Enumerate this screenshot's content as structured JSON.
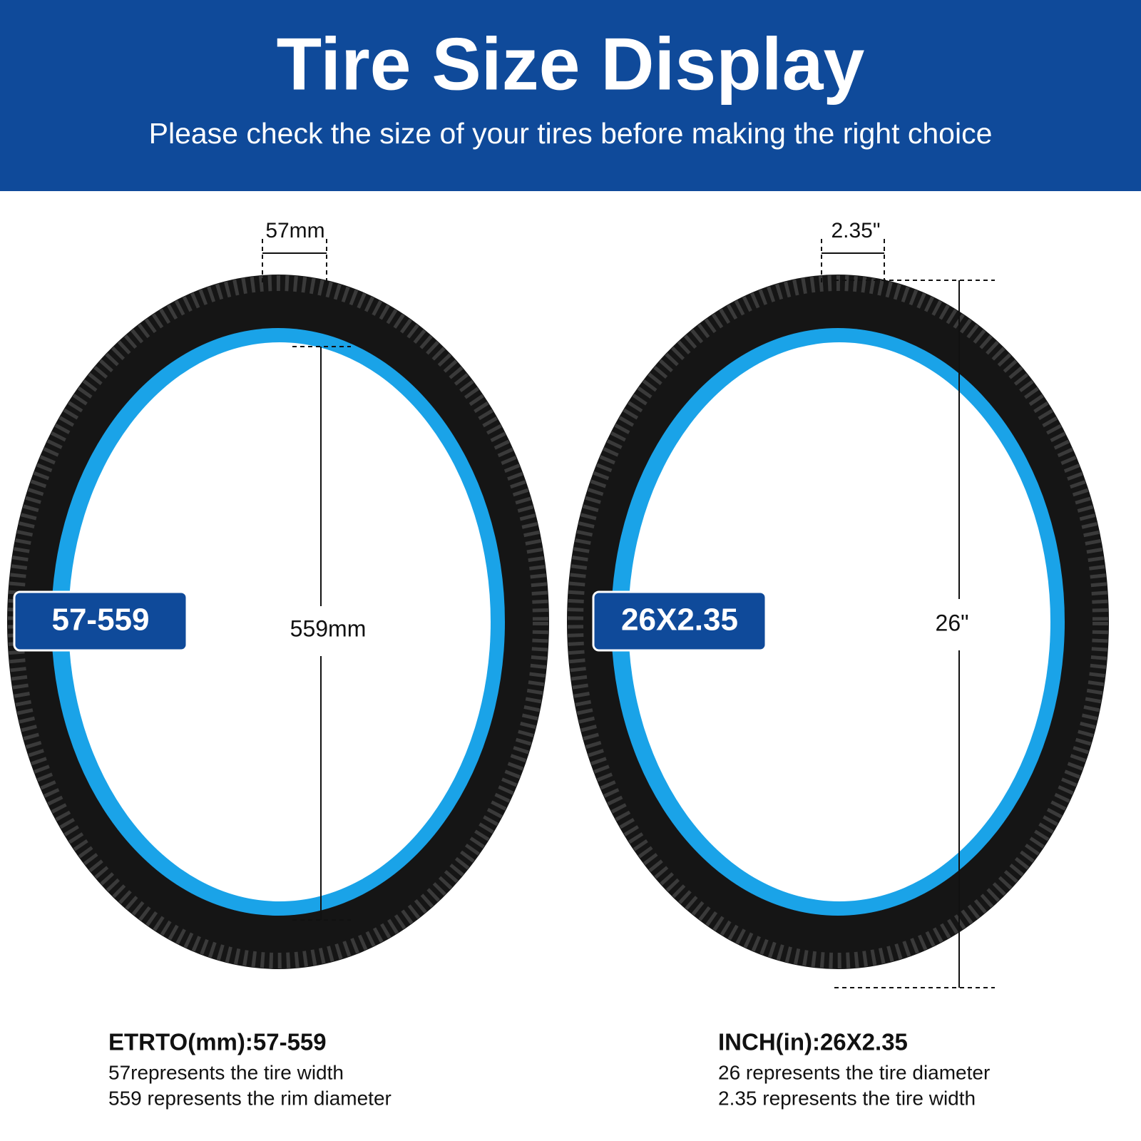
{
  "header": {
    "title": "Tire Size Display",
    "subtitle": "Please check the size of your tires before making the right choice"
  },
  "tires": [
    {
      "badge": "57-559",
      "width_label": "57mm",
      "diameter_label": "559mm",
      "caption": {
        "title": "ETRTO(mm):57-559",
        "lines": [
          "57represents the tire width",
          "559 represents the rim diameter"
        ]
      }
    },
    {
      "badge": "26X2.35",
      "width_label": "2.35\"",
      "diameter_label": "26\"",
      "caption": {
        "title": "INCH(in):26X2.35",
        "lines": [
          "26 represents the tire diameter",
          "2.35 represents the tire width"
        ]
      }
    }
  ]
}
